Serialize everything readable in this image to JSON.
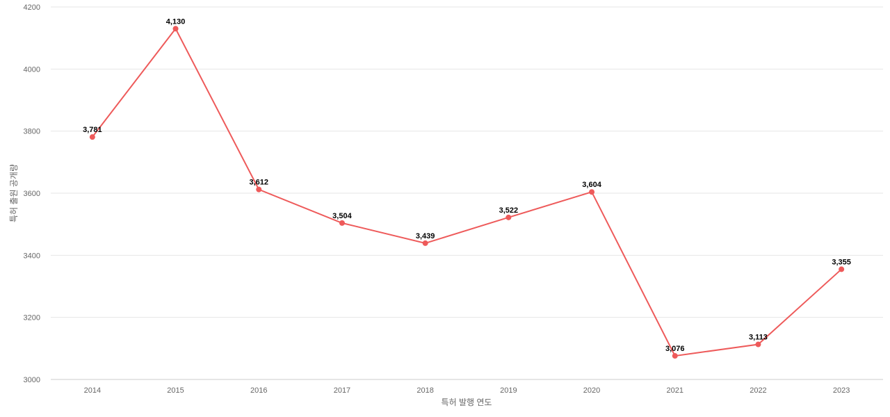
{
  "chart_data": {
    "type": "line",
    "title": "",
    "xlabel": "특허 발행 연도",
    "ylabel": "특허 출원 공개량",
    "ylim": [
      3000,
      4200
    ],
    "yticks": [
      3000,
      3200,
      3400,
      3600,
      3800,
      4000,
      4200
    ],
    "grid": true,
    "legend": "none",
    "color": "#ee5a5a",
    "categories": [
      "2014",
      "2015",
      "2016",
      "2017",
      "2018",
      "2019",
      "2020",
      "2021",
      "2022",
      "2023"
    ],
    "values": [
      3781,
      4130,
      3612,
      3504,
      3439,
      3522,
      3604,
      3076,
      3113,
      3355
    ],
    "data_labels": [
      "3,781",
      "4,130",
      "3,612",
      "3,504",
      "3,439",
      "3,522",
      "3,604",
      "3,076",
      "3,113",
      "3,355"
    ]
  }
}
